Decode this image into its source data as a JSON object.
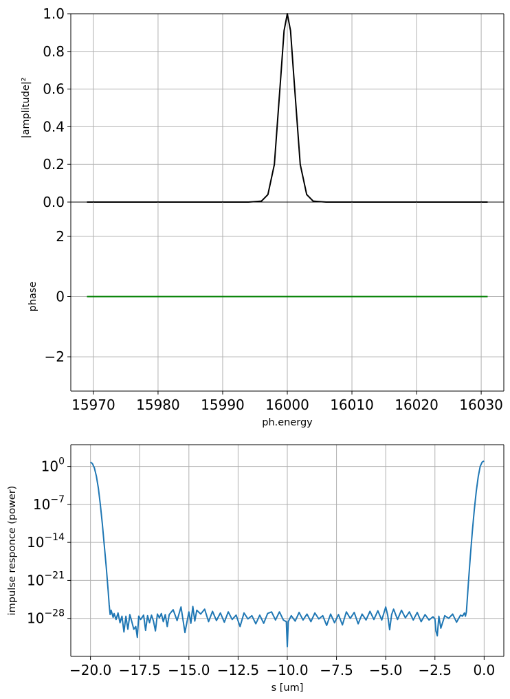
{
  "chart_data": [
    {
      "type": "line",
      "ylabel": "|amplitude|²",
      "xlabel": "",
      "xlim": [
        15966.5,
        16033.5
      ],
      "ylim": [
        0,
        1
      ],
      "grid": true,
      "yticks": [
        "0.0",
        "0.2",
        "0.4",
        "0.6",
        "0.8",
        "1.0"
      ],
      "series": [
        {
          "color": "#000000",
          "x": [
            15969,
            15990,
            15994,
            15996,
            15997,
            15998,
            15999,
            15999.5,
            16000,
            16000.5,
            16001,
            16002,
            16003,
            16004,
            16006,
            16010,
            16031
          ],
          "y": [
            0,
            0,
            0,
            0.005,
            0.04,
            0.2,
            0.67,
            0.91,
            1.0,
            0.91,
            0.67,
            0.2,
            0.04,
            0.005,
            0,
            0,
            0
          ]
        }
      ]
    },
    {
      "type": "line",
      "ylabel": "phase",
      "xlabel": "ph.energy",
      "xlim": [
        15966.5,
        16033.5
      ],
      "ylim": [
        -3.14,
        3.14
      ],
      "grid": true,
      "xticks": [
        "15970",
        "15980",
        "15990",
        "16000",
        "16010",
        "16020",
        "16030"
      ],
      "yticks": [
        "−2",
        "0",
        "2"
      ],
      "series": [
        {
          "color": "#008000",
          "x": [
            15969,
            16031
          ],
          "y": [
            0,
            0
          ]
        }
      ]
    },
    {
      "type": "line",
      "ylabel": "impulse responce (power)",
      "xlabel": "s [um]",
      "xlim": [
        -21,
        1
      ],
      "ylim": [
        -35,
        4
      ],
      "yscale": "log",
      "grid": true,
      "xticks": [
        "−20.0",
        "−17.5",
        "−15.0",
        "−12.5",
        "−10.0",
        "−7.5",
        "−5.0",
        "−2.5",
        "0.0"
      ],
      "yticks": [
        {
          "base": "10",
          "exp": "0"
        },
        {
          "base": "10",
          "exp": "−7"
        },
        {
          "base": "10",
          "exp": "−14"
        },
        {
          "base": "10",
          "exp": "−21"
        },
        {
          "base": "10",
          "exp": "−28"
        }
      ],
      "series": [
        {
          "color": "#1f77b4",
          "x": [
            -20.0,
            -19.9,
            -19.8,
            -19.7,
            -19.6,
            -19.5,
            -19.4,
            -19.3,
            -19.2,
            -19.1,
            -19.05,
            -19.0,
            -18.95,
            -18.85,
            -18.8,
            -18.7,
            -18.6,
            -18.5,
            -18.4,
            -18.3,
            -18.2,
            -18.1,
            -18.0,
            -17.9,
            -17.8,
            -17.7,
            -17.62,
            -17.55,
            -17.45,
            -17.3,
            -17.2,
            -17.1,
            -17.0,
            -16.9,
            -16.8,
            -16.7,
            -16.6,
            -16.5,
            -16.4,
            -16.3,
            -16.2,
            -16.1,
            -16.0,
            -15.8,
            -15.6,
            -15.4,
            -15.2,
            -15.0,
            -14.9,
            -14.8,
            -14.7,
            -14.6,
            -14.4,
            -14.2,
            -14.0,
            -13.8,
            -13.6,
            -13.4,
            -13.2,
            -13.0,
            -12.8,
            -12.6,
            -12.4,
            -12.2,
            -12.0,
            -11.8,
            -11.6,
            -11.4,
            -11.2,
            -11.0,
            -10.8,
            -10.6,
            -10.4,
            -10.2,
            -10.05,
            -10.0,
            -9.95,
            -9.8,
            -9.6,
            -9.4,
            -9.2,
            -9.0,
            -8.8,
            -8.6,
            -8.4,
            -8.2,
            -8.0,
            -7.8,
            -7.6,
            -7.4,
            -7.2,
            -7.0,
            -6.8,
            -6.6,
            -6.4,
            -6.2,
            -6.0,
            -5.8,
            -5.6,
            -5.4,
            -5.2,
            -5.0,
            -4.9,
            -4.8,
            -4.7,
            -4.6,
            -4.4,
            -4.2,
            -4.0,
            -3.8,
            -3.6,
            -3.4,
            -3.2,
            -3.0,
            -2.8,
            -2.6,
            -2.5,
            -2.45,
            -2.38,
            -2.3,
            -2.2,
            -2.0,
            -1.8,
            -1.6,
            -1.4,
            -1.2,
            -1.1,
            -1.0,
            -0.95,
            -0.9,
            -0.8,
            -0.7,
            -0.6,
            -0.5,
            -0.4,
            -0.3,
            -0.2,
            -0.1,
            0.0
          ],
          "y": [
            0.8,
            0.5,
            -0.3,
            -1.8,
            -4,
            -7,
            -10.5,
            -14.5,
            -18.5,
            -23,
            -25.5,
            -27.3,
            -26.5,
            -27.8,
            -27.1,
            -28.2,
            -27.0,
            -28.8,
            -27.6,
            -30.5,
            -27.6,
            -30.0,
            -27.3,
            -28.6,
            -30.0,
            -29.5,
            -31.5,
            -27.6,
            -28.2,
            -27.4,
            -30.2,
            -27.5,
            -28.8,
            -27.4,
            -28.5,
            -30.3,
            -27.2,
            -27.9,
            -27.1,
            -28.6,
            -27.3,
            -29.5,
            -27.3,
            -26.4,
            -28.4,
            -25.9,
            -30.6,
            -26.8,
            -28.9,
            -25.8,
            -28.5,
            -26.5,
            -27.2,
            -26.3,
            -28.6,
            -26.7,
            -28.4,
            -27.0,
            -28.7,
            -26.8,
            -28.2,
            -27.4,
            -29.5,
            -27.0,
            -28.1,
            -27.5,
            -29.0,
            -27.4,
            -28.9,
            -27.1,
            -26.8,
            -28.3,
            -26.8,
            -28.3,
            -28.6,
            -33.2,
            -28.6,
            -27.5,
            -28.5,
            -26.9,
            -28.3,
            -27.2,
            -28.6,
            -27.0,
            -28.1,
            -27.5,
            -29.3,
            -27.2,
            -28.8,
            -27.3,
            -29.2,
            -26.8,
            -28.0,
            -26.9,
            -29.0,
            -27.2,
            -28.3,
            -26.7,
            -28.2,
            -26.6,
            -28.3,
            -25.9,
            -27.4,
            -30.1,
            -27.3,
            -26.3,
            -28.2,
            -26.5,
            -27.9,
            -26.8,
            -28.3,
            -26.9,
            -28.6,
            -27.3,
            -28.3,
            -27.7,
            -28.1,
            -30.3,
            -31.2,
            -27.6,
            -29.8,
            -27.5,
            -28.0,
            -27.2,
            -28.7,
            -27.4,
            -27.6,
            -27.0,
            -27.6,
            -26.8,
            -21.5,
            -16.5,
            -12.0,
            -8.0,
            -4.6,
            -1.9,
            0.0,
            0.8,
            1.0
          ]
        }
      ]
    }
  ]
}
